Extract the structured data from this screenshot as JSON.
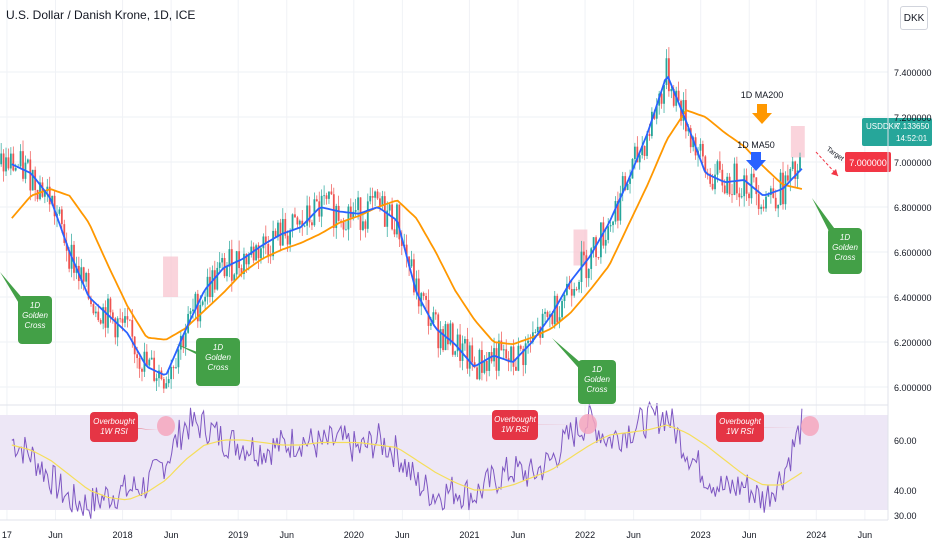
{
  "header": {
    "symbol_title": "U.S. Dollar / Danish Krone, 1D, ICE",
    "currency_label": "DKK"
  },
  "price_tag": {
    "ticker": "USDDKK",
    "price": "7.133650",
    "countdown": "14:52:01"
  },
  "target_tag": {
    "label": "Target",
    "value": "7.000000"
  },
  "annotations": {
    "ma200": "1D MA200",
    "ma50": "1D MA50",
    "golden_cross": [
      "1D",
      "Golden",
      "Cross"
    ],
    "overbought": [
      "Overbought",
      "1W RSI"
    ]
  },
  "colors": {
    "candle_up": "#26a69a",
    "candle_down": "#ef5350",
    "ma50": "#2962ff",
    "ma200": "#ff9800",
    "rsi": "#7e57c2",
    "rsi_ma": "#f5de5a",
    "rsi_band": "#ede7f6",
    "callout_green": "#43a047",
    "callout_red": "#e53545",
    "price_tag": "#26a69a",
    "target_tag": "#f23645"
  },
  "chart_data": [
    {
      "type": "candlestick",
      "title": "U.S. Dollar / Danish Krone, 1D, ICE",
      "y_axis_ticks": [
        "6.000000",
        "6.200000",
        "6.400000",
        "6.600000",
        "6.800000",
        "7.000000",
        "7.200000",
        "7.400000"
      ],
      "ylim": [
        5.92,
        7.72
      ],
      "x_axis_ticks": [
        "17",
        "Jun",
        "2018",
        "Jun",
        "2019",
        "Jun",
        "2020",
        "Jun",
        "2021",
        "Jun",
        "2022",
        "Jun",
        "2023",
        "Jun",
        "2024",
        "Jun"
      ],
      "xlim": [
        "2017-01",
        "2024-07"
      ],
      "log_scale": false,
      "grid": true,
      "series": [
        {
          "name": "1D MA50",
          "x": [
            "2017-01",
            "2017-03",
            "2017-05",
            "2017-07",
            "2017-09",
            "2017-11",
            "2018-01",
            "2018-03",
            "2018-05",
            "2018-07",
            "2018-09",
            "2018-11",
            "2019-01",
            "2019-03",
            "2019-05",
            "2019-07",
            "2019-09",
            "2019-11",
            "2020-01",
            "2020-03",
            "2020-05",
            "2020-07",
            "2020-09",
            "2020-11",
            "2021-01",
            "2021-03",
            "2021-05",
            "2021-07",
            "2021-09",
            "2021-11",
            "2022-01",
            "2022-03",
            "2022-05",
            "2022-07",
            "2022-09",
            "2022-11",
            "2023-01",
            "2023-03",
            "2023-05",
            "2023-07",
            "2023-09",
            "2023-11"
          ],
          "values": [
            6.99,
            6.95,
            6.84,
            6.6,
            6.4,
            6.32,
            6.24,
            6.09,
            6.05,
            6.25,
            6.43,
            6.53,
            6.57,
            6.63,
            6.68,
            6.71,
            6.8,
            6.78,
            6.77,
            6.8,
            6.74,
            6.42,
            6.26,
            6.19,
            6.09,
            6.14,
            6.11,
            6.2,
            6.32,
            6.47,
            6.58,
            6.73,
            6.92,
            7.13,
            7.39,
            7.18,
            6.95,
            6.91,
            6.92,
            6.85,
            6.88,
            6.97
          ]
        },
        {
          "name": "1D MA200",
          "x": [
            "2017-01",
            "2017-03",
            "2017-05",
            "2017-07",
            "2017-09",
            "2017-11",
            "2018-01",
            "2018-03",
            "2018-05",
            "2018-07",
            "2018-09",
            "2018-11",
            "2019-01",
            "2019-03",
            "2019-05",
            "2019-07",
            "2019-09",
            "2019-11",
            "2020-01",
            "2020-03",
            "2020-05",
            "2020-07",
            "2020-09",
            "2020-11",
            "2021-01",
            "2021-03",
            "2021-05",
            "2021-07",
            "2021-09",
            "2021-11",
            "2022-01",
            "2022-03",
            "2022-05",
            "2022-07",
            "2022-09",
            "2022-11",
            "2023-01",
            "2023-03",
            "2023-05",
            "2023-07",
            "2023-09",
            "2023-11"
          ],
          "values": [
            6.75,
            6.85,
            6.88,
            6.85,
            6.73,
            6.54,
            6.36,
            6.22,
            6.21,
            6.26,
            6.34,
            6.42,
            6.51,
            6.57,
            6.61,
            6.64,
            6.68,
            6.73,
            6.76,
            6.8,
            6.83,
            6.75,
            6.6,
            6.43,
            6.3,
            6.2,
            6.19,
            6.22,
            6.26,
            6.33,
            6.43,
            6.54,
            6.72,
            6.9,
            7.1,
            7.23,
            7.2,
            7.13,
            7.07,
            6.98,
            6.9,
            6.88
          ]
        }
      ],
      "annotations": [
        "1D MA200",
        "1D MA50",
        "1D Golden Cross",
        "Target",
        "7.000000"
      ]
    },
    {
      "type": "line",
      "title": "",
      "y_axis_ticks": [
        "30.00",
        "40.00",
        "60.00"
      ],
      "ylim": [
        28,
        74
      ],
      "band": [
        32,
        70
      ],
      "series": [
        {
          "name": "",
          "x": [
            "2017-01",
            "2017-03",
            "2017-05",
            "2017-07",
            "2017-09",
            "2017-11",
            "2018-01",
            "2018-03",
            "2018-05",
            "2018-07",
            "2018-09",
            "2018-11",
            "2019-01",
            "2019-03",
            "2019-05",
            "2019-07",
            "2019-09",
            "2019-11",
            "2020-01",
            "2020-03",
            "2020-05",
            "2020-07",
            "2020-09",
            "2020-11",
            "2021-01",
            "2021-03",
            "2021-05",
            "2021-07",
            "2021-09",
            "2021-11",
            "2022-01",
            "2022-03",
            "2022-05",
            "2022-07",
            "2022-09",
            "2022-11",
            "2023-01",
            "2023-03",
            "2023-05",
            "2023-07",
            "2023-09",
            "2023-11"
          ],
          "values": [
            60,
            54,
            45,
            36,
            34,
            38,
            40,
            42,
            52,
            66,
            66,
            60,
            58,
            56,
            58,
            60,
            58,
            60,
            56,
            60,
            55,
            43,
            38,
            40,
            38,
            44,
            48,
            46,
            52,
            62,
            68,
            60,
            64,
            68,
            70,
            56,
            46,
            40,
            42,
            36,
            46,
            66
          ]
        },
        {
          "name": "",
          "x": [
            "2017-01",
            "2017-03",
            "2017-05",
            "2017-07",
            "2017-09",
            "2017-11",
            "2018-01",
            "2018-03",
            "2018-05",
            "2018-07",
            "2018-09",
            "2018-11",
            "2019-01",
            "2019-03",
            "2019-05",
            "2019-07",
            "2019-09",
            "2019-11",
            "2020-01",
            "2020-03",
            "2020-05",
            "2020-07",
            "2020-09",
            "2020-11",
            "2021-01",
            "2021-03",
            "2021-05",
            "2021-07",
            "2021-09",
            "2021-11",
            "2022-01",
            "2022-03",
            "2022-05",
            "2022-07",
            "2022-09",
            "2022-11",
            "2023-01",
            "2023-03",
            "2023-05",
            "2023-07",
            "2023-09",
            "2023-11"
          ],
          "values": [
            58,
            56,
            52,
            46,
            40,
            37,
            36,
            39,
            44,
            52,
            58,
            60,
            60,
            59,
            58,
            58,
            59,
            59,
            59,
            58,
            57,
            52,
            47,
            43,
            40,
            40,
            42,
            45,
            48,
            53,
            58,
            62,
            63,
            64,
            66,
            63,
            58,
            52,
            46,
            42,
            42,
            47
          ]
        }
      ],
      "annotations": [
        "Overbought 1W RSI"
      ]
    }
  ]
}
